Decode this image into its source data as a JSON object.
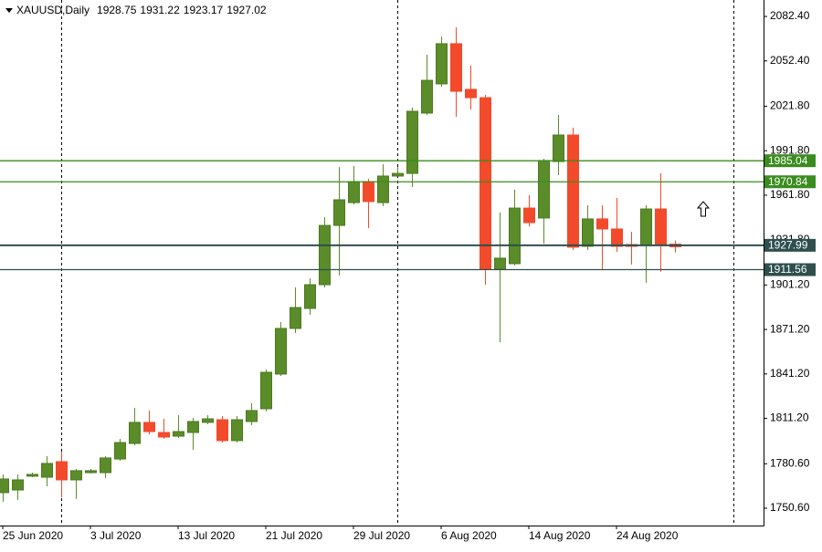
{
  "chart_data": {
    "type": "candlestick",
    "header": {
      "symbol": "XAUUSD,Daily",
      "open": 1928.75,
      "high": 1931.22,
      "low": 1923.17,
      "close": 1927.02
    },
    "categories": [
      "25 Jun 2020",
      null,
      null,
      null,
      null,
      null,
      "3 Jul 2020",
      null,
      null,
      null,
      null,
      null,
      "13 Jul 2020",
      null,
      null,
      null,
      null,
      null,
      "21 Jul 2020",
      null,
      null,
      null,
      null,
      null,
      "29 Jul 2020",
      null,
      null,
      null,
      null,
      null,
      "6 Aug 2020",
      null,
      null,
      null,
      null,
      null,
      "14 Aug 2020",
      null,
      null,
      null,
      null,
      null,
      "24 Aug 2020",
      null,
      null,
      null,
      null
    ],
    "open": [
      1761.1,
      1762.9,
      1772.2,
      1771.5,
      1782.0,
      1769.7,
      1774.6,
      1774.6,
      1783.8,
      1794.3,
      1808.5,
      1801.7,
      1799.2,
      1801.7,
      1808.5,
      1810.3,
      1796.2,
      1809.1,
      1817.7,
      1841.1,
      1871.9,
      1885.4,
      1901.4,
      1941.4,
      1956.8,
      1971.0,
      1956.8,
      1974.7,
      1976.5,
      2017.2,
      2036.9,
      2064.0,
      2033.2,
      2027.6,
      1911.9,
      1915.6,
      1953.1,
      1946.4,
      1984.5,
      2002.4,
      1927.3,
      1945.8,
      1939.0,
      1928.5,
      1927.9,
      1952.5,
      1928.75
    ],
    "high": [
      1773.4,
      1773.4,
      1774.6,
      1785.7,
      1788.8,
      1777.1,
      1777.1,
      1785.7,
      1797.4,
      1818.3,
      1816.5,
      1810.9,
      1813.4,
      1811.6,
      1813.4,
      1812.8,
      1812.8,
      1821.4,
      1844.2,
      1876.2,
      1899.6,
      1905.7,
      1947.0,
      1980.8,
      1981.5,
      1972.8,
      1982.7,
      1980.8,
      2020.9,
      2056.6,
      2068.9,
      2075.0,
      2049.2,
      2029.5,
      1950.1,
      1965.5,
      1961.8,
      1986.4,
      2015.9,
      2007.3,
      1955.0,
      1955.0,
      1959.9,
      1937.1,
      1955.0,
      1976.5,
      1931.22
    ],
    "low": [
      1754.9,
      1756.2,
      1771.5,
      1765.4,
      1758.0,
      1756.8,
      1774.0,
      1770.9,
      1782.6,
      1793.1,
      1800.5,
      1797.4,
      1798.0,
      1790.0,
      1807.2,
      1794.9,
      1794.9,
      1806.6,
      1815.9,
      1839.9,
      1868.8,
      1881.1,
      1899.6,
      1907.6,
      1955.6,
      1939.6,
      1954.4,
      1974.7,
      1967.3,
      2015.9,
      2035.0,
      2014.7,
      2019.6,
      1901.4,
      1862.6,
      1914.4,
      1940.8,
      1929.1,
      1975.3,
      1924.8,
      1924.8,
      1911.3,
      1923.6,
      1915.0,
      1902.7,
      1910.1,
      1923.17
    ],
    "close": [
      1770.3,
      1769.7,
      1773.4,
      1780.8,
      1769.7,
      1775.9,
      1775.9,
      1784.5,
      1794.9,
      1808.5,
      1802.3,
      1798.6,
      1802.3,
      1809.1,
      1810.9,
      1796.2,
      1810.3,
      1816.5,
      1842.3,
      1871.9,
      1886.0,
      1901.4,
      1941.4,
      1958.7,
      1971.0,
      1957.5,
      1974.7,
      1976.5,
      2018.4,
      2039.3,
      2064.0,
      2031.9,
      2027.6,
      1911.9,
      1919.3,
      1953.1,
      1943.3,
      1985.2,
      2002.4,
      1926.7,
      1945.8,
      1939.0,
      1927.3,
      1927.3,
      1952.5,
      1927.9,
      1927.02
    ],
    "up_color": "#5b8c2a",
    "down_color": "#f24a2a",
    "ylim": [
      1738.9,
      2093.5
    ],
    "yticks": [
      {
        "value": 2082.4,
        "label": "2082.40"
      },
      {
        "value": 2052.4,
        "label": "2052.40"
      },
      {
        "value": 2021.8,
        "label": "2021.80"
      },
      {
        "value": 1991.8,
        "label": "1991.80"
      },
      {
        "value": 1961.8,
        "label": "1961.80"
      },
      {
        "value": 1931.8,
        "label": "1931.80"
      },
      {
        "value": 1901.2,
        "label": "1901.20"
      },
      {
        "value": 1871.2,
        "label": "1871.20"
      },
      {
        "value": 1841.2,
        "label": "1841.20"
      },
      {
        "value": 1811.2,
        "label": "1811.20"
      },
      {
        "value": 1780.6,
        "label": "1780.60"
      },
      {
        "value": 1750.6,
        "label": "1750.60"
      }
    ],
    "hlines": [
      {
        "value": 1985.04,
        "color": "#3a8c1e"
      },
      {
        "value": 1970.84,
        "color": "#3a8c1e"
      },
      {
        "value": 1927.99,
        "color": "#2f4f4f"
      },
      {
        "value": 1911.56,
        "color": "#2f4f4f"
      }
    ],
    "grid": false
  }
}
